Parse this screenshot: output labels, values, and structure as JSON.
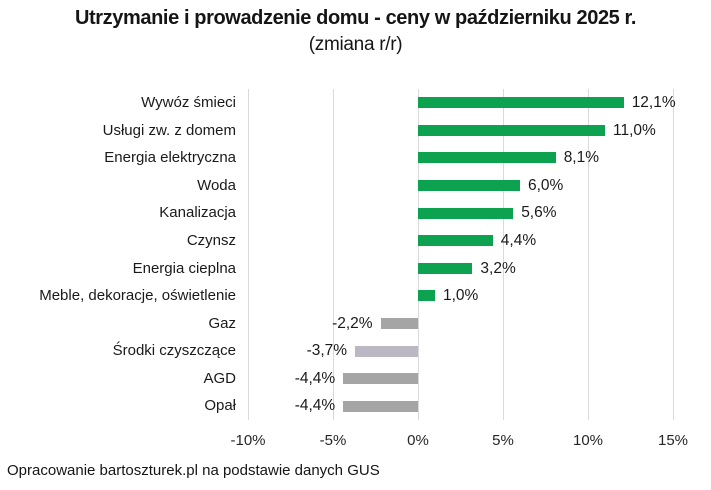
{
  "header": {
    "title": "Utrzymanie i prowadzenie domu - ceny w październiku 2025 r.",
    "subtitle": "(zmiana r/r)"
  },
  "footer": {
    "source_note": "Opracowanie bartoszturek.pl na podstawie danych GUS"
  },
  "chart_data": {
    "type": "bar",
    "orientation": "horizontal",
    "title": "Utrzymanie i prowadzenie domu - ceny w październiku 2025 r.",
    "subtitle": "(zmiana r/r)",
    "categories": [
      "Wywóz śmieci",
      "Usługi zw. z domem",
      "Energia elektryczna",
      "Woda",
      "Kanalizacja",
      "Czynsz",
      "Energia cieplna",
      "Meble, dekoracje, oświetlenie",
      "Gaz",
      "Środki czyszczące",
      "AGD",
      "Opał"
    ],
    "values": [
      12.1,
      11.0,
      8.1,
      6.0,
      5.6,
      4.4,
      3.2,
      1.0,
      -2.2,
      -3.7,
      -4.4,
      -4.4
    ],
    "value_labels": [
      "12,1%",
      "11,0%",
      "8,1%",
      "6,0%",
      "5,6%",
      "4,4%",
      "3,2%",
      "1,0%",
      "-2,2%",
      "-3,7%",
      "-4,4%",
      "-4,4%"
    ],
    "bar_colors": [
      "#0ca24f",
      "#0ca24f",
      "#0ca24f",
      "#0ca24f",
      "#0ca24f",
      "#0ca24f",
      "#0ca24f",
      "#0ca24f",
      "#a5a5a5",
      "#bcb8c3",
      "#a5a5a5",
      "#a5a5a5"
    ],
    "positive_color": "#0ca24f",
    "negative_color": "#a5a5a5",
    "xlim": [
      -10,
      15
    ],
    "x_ticks": [
      -10,
      -5,
      0,
      5,
      10,
      15
    ],
    "x_tick_labels": [
      "-10%",
      "-5%",
      "0%",
      "5%",
      "10%",
      "15%"
    ],
    "grid": "vertical",
    "gridline_color": "#d9d9d9",
    "legend": "none",
    "xlabel": "",
    "ylabel": ""
  }
}
